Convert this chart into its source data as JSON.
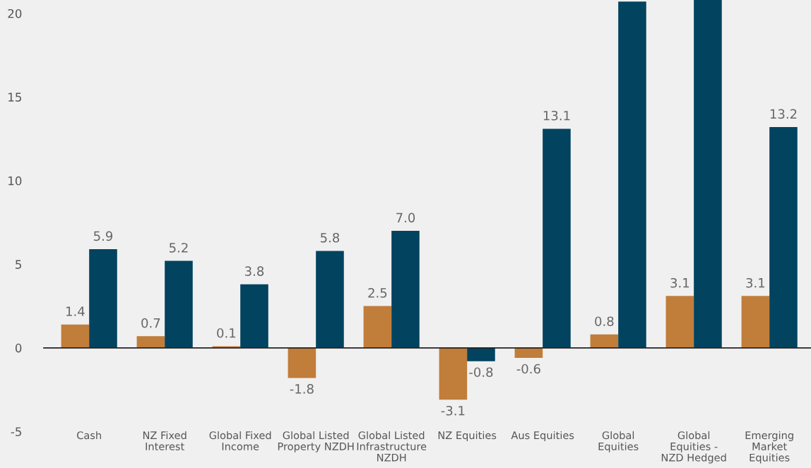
{
  "chart_data": {
    "type": "bar",
    "categories": [
      "Cash",
      "NZ Fixed Interest",
      "Global Fixed Income",
      "Global Listed Property NZDH",
      "Global Listed Infrastructure NZDH",
      "NZ Equities",
      "Aus Equities",
      "Global Equities",
      "Global Equities - NZD Hedged",
      "Emerging Market Equities"
    ],
    "series": [
      {
        "color": "#c17d3a",
        "values": [
          1.4,
          0.7,
          0.1,
          -1.8,
          2.5,
          -3.1,
          -0.6,
          0.8,
          3.1,
          3.1
        ],
        "value_labels": [
          "1.4",
          "0.7",
          "0.1",
          "-1.8",
          "2.5",
          "-3.1",
          "-0.6",
          "0.8",
          "3.1",
          "3.1"
        ]
      },
      {
        "color": "#02435f",
        "values": [
          5.9,
          5.2,
          3.8,
          5.8,
          7.0,
          -0.8,
          13.1,
          20.7,
          20.8,
          13.2
        ],
        "value_labels": [
          "5.9",
          "5.2",
          "3.8",
          "5.8",
          "7.0",
          "-0.8",
          "13.1",
          null,
          null,
          "13.2"
        ]
      }
    ],
    "ylim": [
      -5,
      20.8
    ],
    "yticks": [
      -5,
      0,
      5,
      10,
      15,
      20
    ],
    "legend": false
  }
}
